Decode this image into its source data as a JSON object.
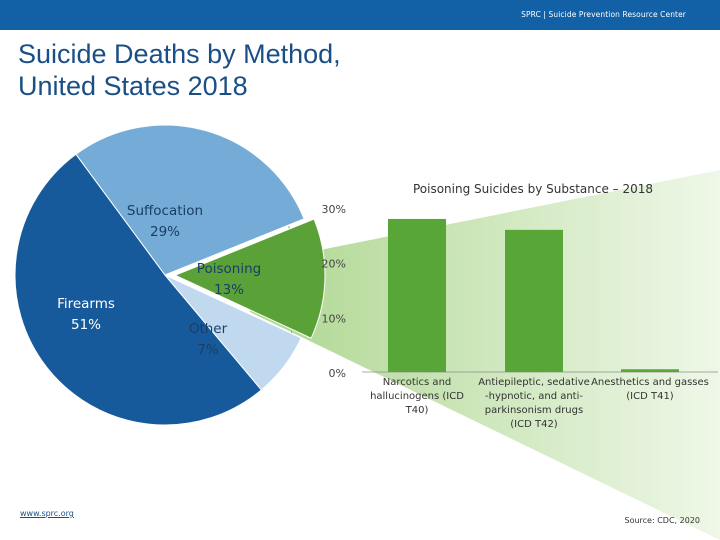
{
  "header": {
    "org_text": "SPRC  |  Suicide Prevention Resource Center"
  },
  "slide": {
    "title_line1": "Suicide Deaths by Method,",
    "title_line2": "United States 2018"
  },
  "colors": {
    "topbar": "#1260a6",
    "firearms": "#175a9b",
    "suffocation": "#74acd7",
    "poisoning": "#5aa238",
    "other": "#c0d9ee",
    "bar": "#58a637",
    "highlight_strong": "#a9d48a",
    "highlight_light": "#eef7e7"
  },
  "chart_data": [
    {
      "type": "pie",
      "categories": [
        "Firearms",
        "Suffocation",
        "Poisoning",
        "Other"
      ],
      "values": [
        51,
        29,
        13,
        7
      ],
      "labels": [
        "Firearms\n51%",
        "Suffocation\n29%",
        "Poisoning\n13%",
        "Other\n7%"
      ],
      "exploded": "Poisoning",
      "title": "",
      "legend": "none"
    },
    {
      "type": "bar",
      "title": "Poisoning Suicides by Substance – 2018",
      "categories": [
        "Narcotics and hallucinogens (ICD T40)",
        "Antiepileptic, sedative -hypnotic, and anti-parkinsonism drugs (ICD T42)",
        "Anesthetics and gasses (ICD T41)"
      ],
      "category_lines": [
        [
          "Narcotics and",
          "hallucinogens (ICD",
          "T40)"
        ],
        [
          "Antiepileptic, sedative",
          "-hypnotic, and anti-",
          "parkinsonism drugs",
          "(ICD T42)"
        ],
        [
          "Anesthetics and gasses",
          "(ICD T41)"
        ]
      ],
      "values": [
        28,
        26,
        0.5
      ],
      "ylim": [
        0,
        30
      ],
      "yticks": [
        0,
        10,
        20,
        30
      ],
      "ytick_labels": [
        "0%",
        "10%",
        "20%",
        "30%"
      ],
      "grid": false,
      "xlabel": "",
      "ylabel": ""
    }
  ],
  "footer": {
    "link": "www.sprc.org",
    "source": "Source: CDC, 2020"
  }
}
